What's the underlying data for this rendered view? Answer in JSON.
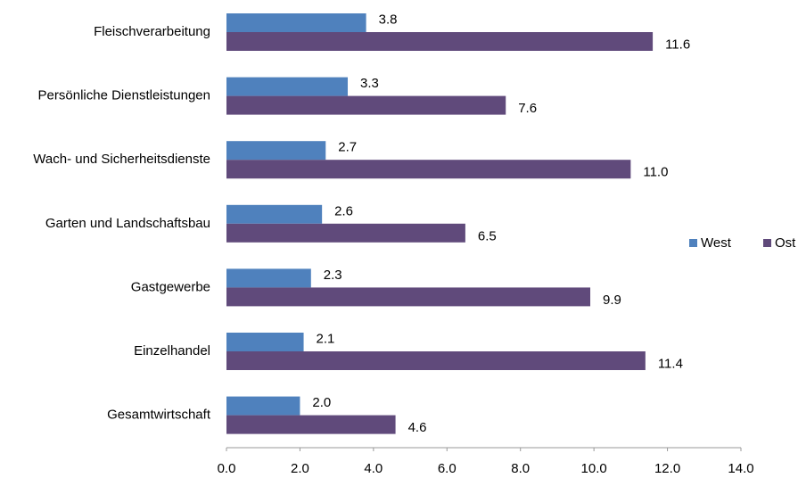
{
  "chart_data": {
    "type": "bar",
    "orientation": "horizontal",
    "categories": [
      "Fleischverarbeitung",
      "Persönliche Dienstleistungen",
      "Wach- und Sicherheitsdienste",
      "Garten und Landschaftsbau",
      "Gastgewerbe",
      "Einzelhandel",
      "Gesamtwirtschaft"
    ],
    "series": [
      {
        "name": "West",
        "color": "#4f81bd",
        "values": [
          3.8,
          3.3,
          2.7,
          2.6,
          2.3,
          2.1,
          2.0
        ],
        "value_labels": [
          "3.8",
          "3.3",
          "2.7",
          "2.6",
          "2.3",
          "2.1",
          "2.0"
        ]
      },
      {
        "name": "Ost",
        "color": "#604a7b",
        "values": [
          11.6,
          7.6,
          11.0,
          6.5,
          9.9,
          11.4,
          4.6
        ],
        "value_labels": [
          "11.6",
          "7.6",
          "11.0",
          "6.5",
          "9.9",
          "11.4",
          "4.6"
        ]
      }
    ],
    "xlim": [
      0,
      14
    ],
    "xticks": [
      {
        "value": 0,
        "label": "0.0"
      },
      {
        "value": 2,
        "label": "2.0"
      },
      {
        "value": 4,
        "label": "4.0"
      },
      {
        "value": 6,
        "label": "6.0"
      },
      {
        "value": 8,
        "label": "8.0"
      },
      {
        "value": 10,
        "label": "10.0"
      },
      {
        "value": 12,
        "label": "12.0"
      },
      {
        "value": 14,
        "label": "14.0"
      }
    ],
    "legend": "right",
    "grid": false
  }
}
